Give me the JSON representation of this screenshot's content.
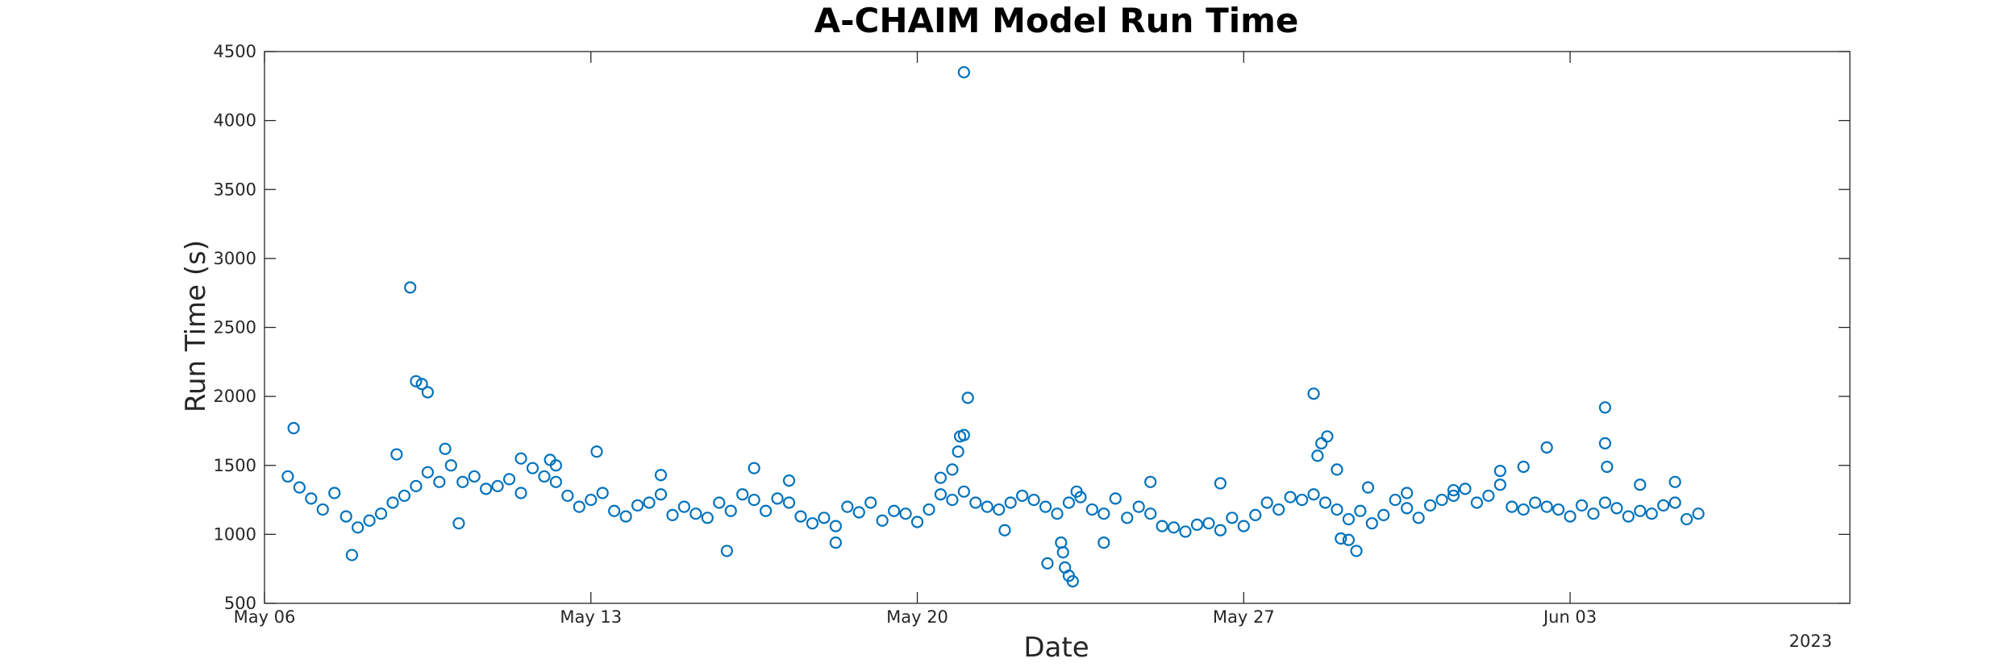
{
  "chart_data": {
    "type": "scatter",
    "title": "A-CHAIM Model Run Time",
    "xlabel": "Date",
    "ylabel": "Run Time (s)",
    "x_axis_type": "date",
    "xlim": [
      "2023-05-06",
      "2023-06-09"
    ],
    "ylim": [
      500,
      4500
    ],
    "x_ticks": [
      {
        "date": "2023-05-06",
        "label": "May 06"
      },
      {
        "date": "2023-05-13",
        "label": "May 13"
      },
      {
        "date": "2023-05-20",
        "label": "May 20"
      },
      {
        "date": "2023-05-27",
        "label": "May 27"
      },
      {
        "date": "2023-06-03",
        "label": "Jun 03"
      }
    ],
    "y_ticks": [
      500,
      1000,
      1500,
      2000,
      2500,
      3000,
      3500,
      4000,
      4500
    ],
    "year_label": "2023",
    "marker": "open-circle",
    "marker_color": "#0072BD",
    "grid": false,
    "series": [
      {
        "x": [
          "2023-05-06 12:00",
          "2023-05-06 18:00",
          "2023-05-07 00:00",
          "2023-05-07 06:00",
          "2023-05-07 12:00",
          "2023-05-07 18:00",
          "2023-05-08 00:00",
          "2023-05-08 06:00",
          "2023-05-08 12:00",
          "2023-05-08 18:00",
          "2023-05-09 00:00",
          "2023-05-09 06:00",
          "2023-05-09 12:00",
          "2023-05-09 18:00",
          "2023-05-10 00:00",
          "2023-05-10 06:00",
          "2023-05-10 12:00",
          "2023-05-10 18:00",
          "2023-05-11 00:00",
          "2023-05-11 06:00",
          "2023-05-11 12:00",
          "2023-05-11 18:00",
          "2023-05-12 00:00",
          "2023-05-12 06:00",
          "2023-05-12 12:00",
          "2023-05-12 18:00",
          "2023-05-13 00:00",
          "2023-05-13 06:00",
          "2023-05-13 12:00",
          "2023-05-13 18:00",
          "2023-05-14 00:00",
          "2023-05-14 06:00",
          "2023-05-14 12:00",
          "2023-05-14 18:00",
          "2023-05-15 00:00",
          "2023-05-15 06:00",
          "2023-05-15 12:00",
          "2023-05-15 18:00",
          "2023-05-16 00:00",
          "2023-05-16 06:00",
          "2023-05-16 12:00",
          "2023-05-16 18:00",
          "2023-05-17 00:00",
          "2023-05-17 06:00",
          "2023-05-17 12:00",
          "2023-05-17 18:00",
          "2023-05-18 00:00",
          "2023-05-18 06:00",
          "2023-05-18 12:00",
          "2023-05-18 18:00",
          "2023-05-19 00:00",
          "2023-05-19 06:00",
          "2023-05-19 12:00",
          "2023-05-19 18:00",
          "2023-05-20 00:00",
          "2023-05-20 06:00",
          "2023-05-20 12:00",
          "2023-05-20 18:00",
          "2023-05-21 00:00",
          "2023-05-21 06:00",
          "2023-05-21 12:00",
          "2023-05-21 18:00",
          "2023-05-22 00:00",
          "2023-05-22 06:00",
          "2023-05-22 12:00",
          "2023-05-22 18:00",
          "2023-05-23 00:00",
          "2023-05-23 06:00",
          "2023-05-23 12:00",
          "2023-05-23 18:00",
          "2023-05-24 00:00",
          "2023-05-24 06:00",
          "2023-05-24 12:00",
          "2023-05-24 18:00",
          "2023-05-25 00:00",
          "2023-05-25 06:00",
          "2023-05-25 12:00",
          "2023-05-25 18:00",
          "2023-05-26 00:00",
          "2023-05-26 06:00",
          "2023-05-26 12:00",
          "2023-05-26 18:00",
          "2023-05-27 00:00",
          "2023-05-27 06:00",
          "2023-05-27 12:00",
          "2023-05-27 18:00",
          "2023-05-28 00:00",
          "2023-05-28 06:00",
          "2023-05-28 12:00",
          "2023-05-28 18:00",
          "2023-05-29 00:00",
          "2023-05-29 06:00",
          "2023-05-29 12:00",
          "2023-05-29 18:00",
          "2023-05-30 00:00",
          "2023-05-30 06:00",
          "2023-05-30 12:00",
          "2023-05-30 18:00",
          "2023-05-31 00:00",
          "2023-05-31 06:00",
          "2023-05-31 12:00",
          "2023-05-31 18:00",
          "2023-06-01 00:00",
          "2023-06-01 06:00",
          "2023-06-01 12:00",
          "2023-06-01 18:00",
          "2023-06-02 00:00",
          "2023-06-02 06:00",
          "2023-06-02 12:00",
          "2023-06-02 18:00",
          "2023-06-03 00:00",
          "2023-06-03 06:00",
          "2023-06-03 12:00",
          "2023-06-03 18:00",
          "2023-06-04 00:00",
          "2023-06-04 06:00",
          "2023-06-04 12:00",
          "2023-06-04 18:00",
          "2023-06-05 00:00",
          "2023-06-05 06:00",
          "2023-06-05 12:00",
          "2023-06-05 18:00",
          "2023-05-06 15:00",
          "2023-05-07 21:00",
          "2023-05-08 20:00",
          "2023-05-09 03:00",
          "2023-05-09 06:00",
          "2023-05-09 09:00",
          "2023-05-09 12:00",
          "2023-05-09 21:00",
          "2023-05-10 04:00",
          "2023-05-11 12:00",
          "2023-05-12 03:00",
          "2023-05-12 06:00",
          "2023-05-13 03:00",
          "2023-05-14 12:00",
          "2023-05-15 22:00",
          "2023-05-16 12:00",
          "2023-05-17 06:00",
          "2023-05-18 06:00",
          "2023-05-20 12:00",
          "2023-05-20 18:00",
          "2023-05-20 21:00",
          "2023-05-20 22:00",
          "2023-05-21 00:00",
          "2023-05-21 00:00",
          "2023-05-21 02:00",
          "2023-05-21 21:00",
          "2023-05-22 19:00",
          "2023-05-23 02:00",
          "2023-05-23 03:00",
          "2023-05-23 04:00",
          "2023-05-23 06:00",
          "2023-05-23 08:00",
          "2023-05-23 10:00",
          "2023-05-24 00:00",
          "2023-05-25 00:00",
          "2023-05-26 12:00",
          "2023-05-28 12:00",
          "2023-05-28 14:00",
          "2023-05-28 16:00",
          "2023-05-28 19:00",
          "2023-05-29 00:00",
          "2023-05-29 02:00",
          "2023-05-29 06:00",
          "2023-05-29 10:00",
          "2023-05-29 16:00",
          "2023-05-30 12:00",
          "2023-05-31 12:00",
          "2023-06-01 12:00",
          "2023-06-02 00:00",
          "2023-06-02 12:00",
          "2023-06-03 18:00",
          "2023-06-03 18:00",
          "2023-06-03 19:00",
          "2023-06-04 12:00",
          "2023-06-05 06:00"
        ],
        "y": [
          1420,
          1340,
          1260,
          1180,
          1300,
          1130,
          1050,
          1100,
          1150,
          1230,
          1280,
          1350,
          1450,
          1380,
          1500,
          1380,
          1420,
          1330,
          1350,
          1400,
          1300,
          1480,
          1420,
          1380,
          1280,
          1200,
          1250,
          1300,
          1170,
          1130,
          1210,
          1230,
          1290,
          1140,
          1200,
          1150,
          1120,
          1230,
          1170,
          1290,
          1250,
          1170,
          1260,
          1230,
          1130,
          1080,
          1120,
          1060,
          1200,
          1160,
          1230,
          1100,
          1170,
          1150,
          1090,
          1180,
          1290,
          1250,
          1310,
          1230,
          1200,
          1180,
          1230,
          1280,
          1250,
          1200,
          1150,
          1230,
          1270,
          1180,
          1150,
          1260,
          1120,
          1200,
          1150,
          1060,
          1050,
          1020,
          1070,
          1080,
          1030,
          1120,
          1060,
          1140,
          1230,
          1180,
          1270,
          1250,
          1290,
          1230,
          1180,
          1110,
          1170,
          1080,
          1140,
          1250,
          1190,
          1120,
          1210,
          1250,
          1280,
          1330,
          1230,
          1280,
          1360,
          1200,
          1180,
          1230,
          1200,
          1180,
          1130,
          1210,
          1150,
          1230,
          1190,
          1130,
          1170,
          1150,
          1210,
          1230,
          1110,
          1150,
          1770,
          850,
          1580,
          2790,
          2110,
          2090,
          2030,
          1620,
          1080,
          1550,
          1540,
          1500,
          1600,
          1430,
          880,
          1480,
          1390,
          940,
          1410,
          1470,
          1600,
          1710,
          4350,
          1720,
          1990,
          1030,
          790,
          940,
          870,
          760,
          700,
          660,
          1310,
          940,
          1380,
          1370,
          2020,
          1570,
          1660,
          1710,
          1470,
          970,
          960,
          880,
          1340,
          1300,
          1320,
          1460,
          1490,
          1630,
          1920,
          1660,
          1490,
          1360,
          1380
        ]
      }
    ]
  }
}
